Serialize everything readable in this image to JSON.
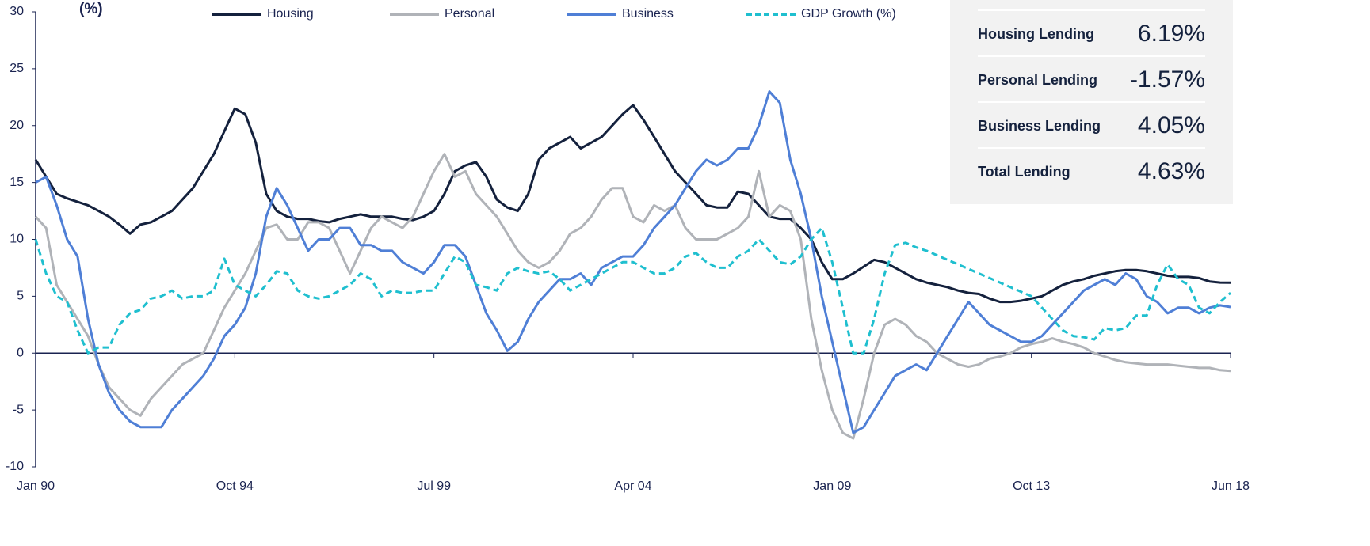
{
  "chart_data": {
    "type": "line",
    "y_label": "(%)",
    "categories": [
      "Jan 90",
      null,
      null,
      null,
      null,
      null,
      null,
      null,
      null,
      null,
      null,
      null,
      null,
      null,
      null,
      null,
      null,
      null,
      null,
      "Oct 94",
      null,
      null,
      null,
      null,
      null,
      null,
      null,
      null,
      null,
      null,
      null,
      null,
      null,
      null,
      null,
      null,
      null,
      null,
      "Jul 99",
      null,
      null,
      null,
      null,
      null,
      null,
      null,
      null,
      null,
      null,
      null,
      null,
      null,
      null,
      null,
      null,
      null,
      null,
      "Apr 04",
      null,
      null,
      null,
      null,
      null,
      null,
      null,
      null,
      null,
      null,
      null,
      null,
      null,
      null,
      null,
      null,
      null,
      null,
      "Jan 09",
      null,
      null,
      null,
      null,
      null,
      null,
      null,
      null,
      null,
      null,
      null,
      null,
      null,
      null,
      null,
      null,
      null,
      null,
      "Oct 13",
      null,
      null,
      null,
      null,
      null,
      null,
      null,
      null,
      null,
      null,
      null,
      null,
      null,
      null,
      null,
      null,
      null,
      null,
      "Jun 18"
    ],
    "series": [
      {
        "name": "Housing",
        "color": "#14213d",
        "dashed": false,
        "values": [
          17,
          15.5,
          14,
          13.6,
          13.3,
          13,
          12.5,
          12,
          11.3,
          10.5,
          11.3,
          11.5,
          12,
          12.5,
          13.5,
          14.5,
          16,
          17.5,
          19.5,
          21.5,
          21,
          18.5,
          14,
          12.5,
          12,
          11.8,
          11.8,
          11.6,
          11.5,
          11.8,
          12,
          12.2,
          12,
          12,
          12,
          11.8,
          11.7,
          12,
          12.5,
          14,
          16,
          16.5,
          16.8,
          15.5,
          13.5,
          12.8,
          12.5,
          14,
          17,
          18,
          18.5,
          19,
          18,
          18.5,
          19,
          20,
          21,
          21.8,
          20.5,
          19,
          17.5,
          16,
          15,
          14,
          13,
          12.8,
          12.8,
          14.2,
          14,
          13,
          12,
          11.8,
          11.8,
          11,
          10,
          8,
          6.5,
          6.5,
          7,
          7.6,
          8.2,
          8,
          7.5,
          7,
          6.5,
          6.2,
          6,
          5.8,
          5.5,
          5.3,
          5.2,
          4.8,
          4.5,
          4.5,
          4.6,
          4.8,
          5,
          5.5,
          6,
          6.3,
          6.5,
          6.8,
          7,
          7.2,
          7.3,
          7.3,
          7.2,
          7,
          6.8,
          6.7,
          6.7,
          6.6,
          6.3,
          6.2,
          6.19
        ]
      },
      {
        "name": "Personal",
        "color": "#b0b3b8",
        "dashed": false,
        "values": [
          12,
          11,
          6,
          4.5,
          3,
          1.5,
          -1,
          -3,
          -4,
          -5,
          -5.5,
          -4,
          -3,
          -2,
          -1,
          -0.5,
          0,
          2,
          4,
          5.5,
          7,
          9,
          11,
          11.3,
          10,
          10,
          11.5,
          11.5,
          11,
          9,
          7,
          9,
          11,
          12,
          11.5,
          11,
          12,
          14,
          16,
          17.5,
          15.5,
          16,
          14,
          13,
          12,
          10.5,
          9,
          8,
          7.5,
          8,
          9,
          10.5,
          11,
          12,
          13.5,
          14.5,
          14.5,
          12,
          11.5,
          13,
          12.5,
          13,
          11,
          10,
          10,
          10,
          10.5,
          11,
          12,
          16,
          12,
          13,
          12.5,
          10,
          3,
          -1.5,
          -5,
          -7,
          -7.5,
          -4,
          0,
          2.5,
          3,
          2.5,
          1.5,
          1,
          0,
          -0.5,
          -1,
          -1.2,
          -1,
          -0.5,
          -0.3,
          0,
          0.5,
          0.8,
          1,
          1.3,
          1,
          0.8,
          0.5,
          0,
          -0.3,
          -0.6,
          -0.8,
          -0.9,
          -1,
          -1,
          -1,
          -1.1,
          -1.2,
          -1.3,
          -1.3,
          -1.5,
          -1.57
        ]
      },
      {
        "name": "Business",
        "color": "#4f7fd6",
        "dashed": false,
        "values": [
          15,
          15.5,
          13,
          10,
          8.5,
          3,
          -1,
          -3.5,
          -5,
          -6,
          -6.5,
          -6.5,
          -6.5,
          -5,
          -4,
          -3,
          -2,
          -0.5,
          1.5,
          2.5,
          4,
          7,
          12,
          14.5,
          13,
          11,
          9,
          10,
          10,
          11,
          11,
          9.5,
          9.5,
          9,
          9,
          8,
          7.5,
          7,
          8,
          9.5,
          9.5,
          8.5,
          6,
          3.5,
          2,
          0.2,
          1,
          3,
          4.5,
          5.5,
          6.5,
          6.5,
          7,
          6,
          7.5,
          8,
          8.5,
          8.5,
          9.5,
          11,
          12,
          13,
          14.5,
          16,
          17,
          16.5,
          17,
          18,
          18,
          20,
          23,
          22,
          17,
          14,
          10,
          5,
          1,
          -3,
          -7,
          -6.5,
          -5,
          -3.5,
          -2,
          -1.5,
          -1,
          -1.5,
          0,
          1.5,
          3,
          4.5,
          3.5,
          2.5,
          2,
          1.5,
          1,
          1,
          1.5,
          2.5,
          3.5,
          4.5,
          5.5,
          6,
          6.5,
          6,
          7,
          6.5,
          5,
          4.5,
          3.5,
          4,
          4,
          3.5,
          4,
          4.2,
          4.05
        ]
      },
      {
        "name": "GDP Growth (%)",
        "color": "#1fbfcf",
        "dashed": true,
        "values": [
          10,
          7,
          5,
          4.5,
          2,
          0,
          0.5,
          0.5,
          2.5,
          3.5,
          3.8,
          4.8,
          5,
          5.5,
          4.8,
          5,
          5,
          5.5,
          8.3,
          6,
          5.5,
          5,
          6,
          7.2,
          7,
          5.5,
          5,
          4.8,
          5,
          5.5,
          6,
          7,
          6.5,
          5,
          5.5,
          5.3,
          5.3,
          5.5,
          5.5,
          7,
          8.5,
          8,
          6,
          5.8,
          5.5,
          7,
          7.5,
          7.2,
          7,
          7.2,
          6.5,
          5.5,
          6,
          6.5,
          7,
          7.5,
          8,
          8,
          7.5,
          7,
          7,
          7.5,
          8.5,
          8.8,
          8,
          7.5,
          7.5,
          8.5,
          9,
          10,
          9,
          8,
          7.8,
          8.5,
          10,
          11,
          8,
          4,
          0,
          0,
          3,
          7,
          9.5,
          9.7,
          9.3,
          9,
          8.6,
          8.2,
          7.8,
          7.4,
          7,
          6.6,
          6.2,
          5.8,
          5.4,
          5,
          4,
          3,
          2,
          1.5,
          1.4,
          1.2,
          2.2,
          2,
          2.2,
          3.3,
          3.3,
          6,
          7.8,
          6.5,
          6,
          4,
          3.5,
          4.5,
          5.3
        ]
      }
    ],
    "ylim": [
      -10,
      30
    ],
    "yticks": [
      -10,
      -5,
      0,
      5,
      10,
      15,
      20,
      25,
      30
    ]
  },
  "summary": [
    {
      "label": "Housing Lending",
      "value": "6.19%"
    },
    {
      "label": "Personal Lending",
      "value": "-1.57%"
    },
    {
      "label": "Business Lending",
      "value": "4.05%"
    },
    {
      "label": "Total Lending",
      "value": "4.63%"
    }
  ]
}
